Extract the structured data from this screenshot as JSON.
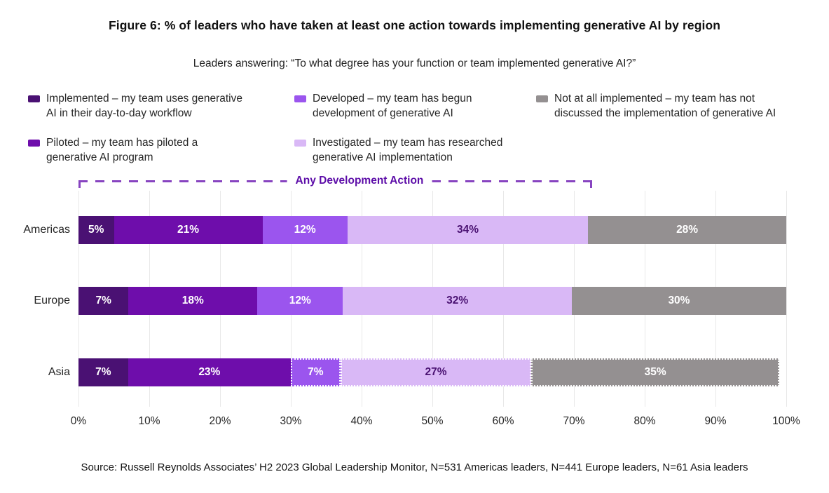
{
  "chart_data": {
    "type": "bar",
    "orientation": "horizontal",
    "stacked": true,
    "title": "Figure 6: % of leaders who have taken at least one action towards implementing generative AI by region",
    "subtitle": "Leaders answering: “To what degree has your function or team implemented generative AI?”",
    "source": "Source: Russell Reynolds Associates’ H2 2023 Global Leadership Monitor, N=531 Americas leaders, N=441 Europe leaders, N=61 Asia leaders",
    "categories": [
      "Americas",
      "Europe",
      "Asia"
    ],
    "series": [
      {
        "name": "Implemented – my team uses generative\nAI in their day-to-day workflow",
        "color": "#4A1173",
        "label_color": "#FFFFFF",
        "values": [
          5,
          7,
          7
        ]
      },
      {
        "name": "Piloted – my team has piloted a\ngenerative AI program",
        "color": "#6E0DAB",
        "label_color": "#FFFFFF",
        "values": [
          21,
          18,
          23
        ]
      },
      {
        "name": "Developed – my team has begun\ndevelopment of generative AI",
        "color": "#9B55EE",
        "label_color": "#FFFFFF",
        "values": [
          12,
          12,
          7
        ]
      },
      {
        "name": "Investigated – my team has researched\ngenerative AI implementation",
        "color": "#D9B8F6",
        "label_color": "#4A1272",
        "values": [
          34,
          32,
          27
        ]
      },
      {
        "name": "Not at all implemented – my team has not\ndiscussed the implementation of generative AI",
        "color": "#949091",
        "label_color": "#FFFFFF",
        "values": [
          28,
          30,
          35
        ]
      }
    ],
    "value_suffix": "%",
    "x_ticks": [
      "0%",
      "10%",
      "20%",
      "30%",
      "40%",
      "50%",
      "60%",
      "70%",
      "80%",
      "90%",
      "100%"
    ],
    "xlim": [
      0,
      100
    ],
    "grid": "vertical",
    "legend_position": "top",
    "bracket": {
      "label": "Any Development Action",
      "start_pct": 0,
      "end_pct": 72.6,
      "label_center_pct": 39.7
    },
    "row_end_pct": [
      100,
      100,
      99
    ],
    "dotted_segments": [
      {
        "category": "Asia",
        "series_indexes": [
          2,
          3,
          4
        ]
      }
    ]
  }
}
